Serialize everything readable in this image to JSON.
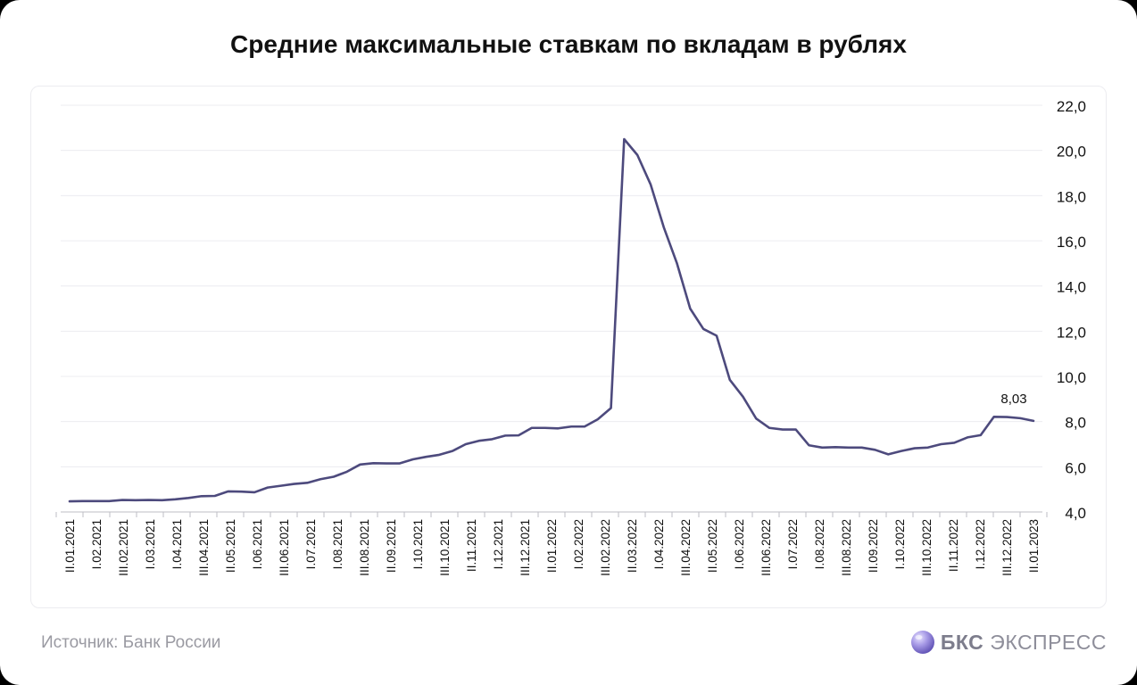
{
  "title": "Средние максимальные ставкам по вкладам в рублях",
  "footer": {
    "source": "Источник: Банк России",
    "brand_bold": "БКС",
    "brand_light": "ЭКСПРЕСС"
  },
  "chart_data": {
    "type": "line",
    "title": "Средние максимальные ставкам по вкладам в рублях",
    "xlabel": "",
    "ylabel": "",
    "ylim": [
      4.0,
      22.0
    ],
    "yticks": [
      "4,0",
      "6,0",
      "8,0",
      "10,0",
      "12,0",
      "14,0",
      "16,0",
      "18,0",
      "20,0",
      "22,0"
    ],
    "grid": true,
    "color": "#4d4a7d",
    "x_tick_labels": [
      "II.01.2021",
      "I.02.2021",
      "III.02.2021",
      "I.03.2021",
      "I.04.2021",
      "III.04.2021",
      "II.05.2021",
      "I.06.2021",
      "III.06.2021",
      "I.07.2021",
      "I.08.2021",
      "III.08.2021",
      "II.09.2021",
      "I.10.2021",
      "III.10.2021",
      "II.11.2021",
      "I.12.2021",
      "III.12.2021",
      "II.01.2022",
      "I.02.2022",
      "III.02.2022",
      "II.03.2022",
      "I.04.2022",
      "III.04.2022",
      "II.05.2022",
      "I.06.2022",
      "III.06.2022",
      "I.07.2022",
      "I.08.2022",
      "III.08.2022",
      "II.09.2022",
      "I.10.2022",
      "III.10.2022",
      "II.11.2022",
      "I.12.2022",
      "III.12.2022",
      "II.01.2023"
    ],
    "series": [
      {
        "values": [
          4.47,
          4.48,
          4.48,
          4.48,
          4.53,
          4.52,
          4.53,
          4.52,
          4.56,
          4.62,
          4.7,
          4.71,
          4.91,
          4.9,
          4.87,
          5.08,
          5.16,
          5.24,
          5.29,
          5.45,
          5.56,
          5.78,
          6.1,
          6.16,
          6.15,
          6.15,
          6.33,
          6.44,
          6.53,
          6.7,
          7.0,
          7.15,
          7.22,
          7.38,
          7.39,
          7.72,
          7.72,
          7.7,
          7.78,
          7.78,
          8.1,
          8.6,
          20.5,
          19.8,
          18.5,
          16.6,
          15.0,
          13.0,
          12.1,
          11.8,
          9.85,
          9.1,
          8.13,
          7.72,
          7.65,
          7.65,
          6.95,
          6.85,
          6.87,
          6.85,
          6.85,
          6.75,
          6.55,
          6.7,
          6.82,
          6.85,
          7.0,
          7.06,
          7.3,
          7.4,
          8.21,
          8.2,
          8.15,
          8.03
        ]
      }
    ],
    "annotations": [
      {
        "label": "8,03",
        "x_index": 73,
        "value": 8.03
      }
    ]
  }
}
